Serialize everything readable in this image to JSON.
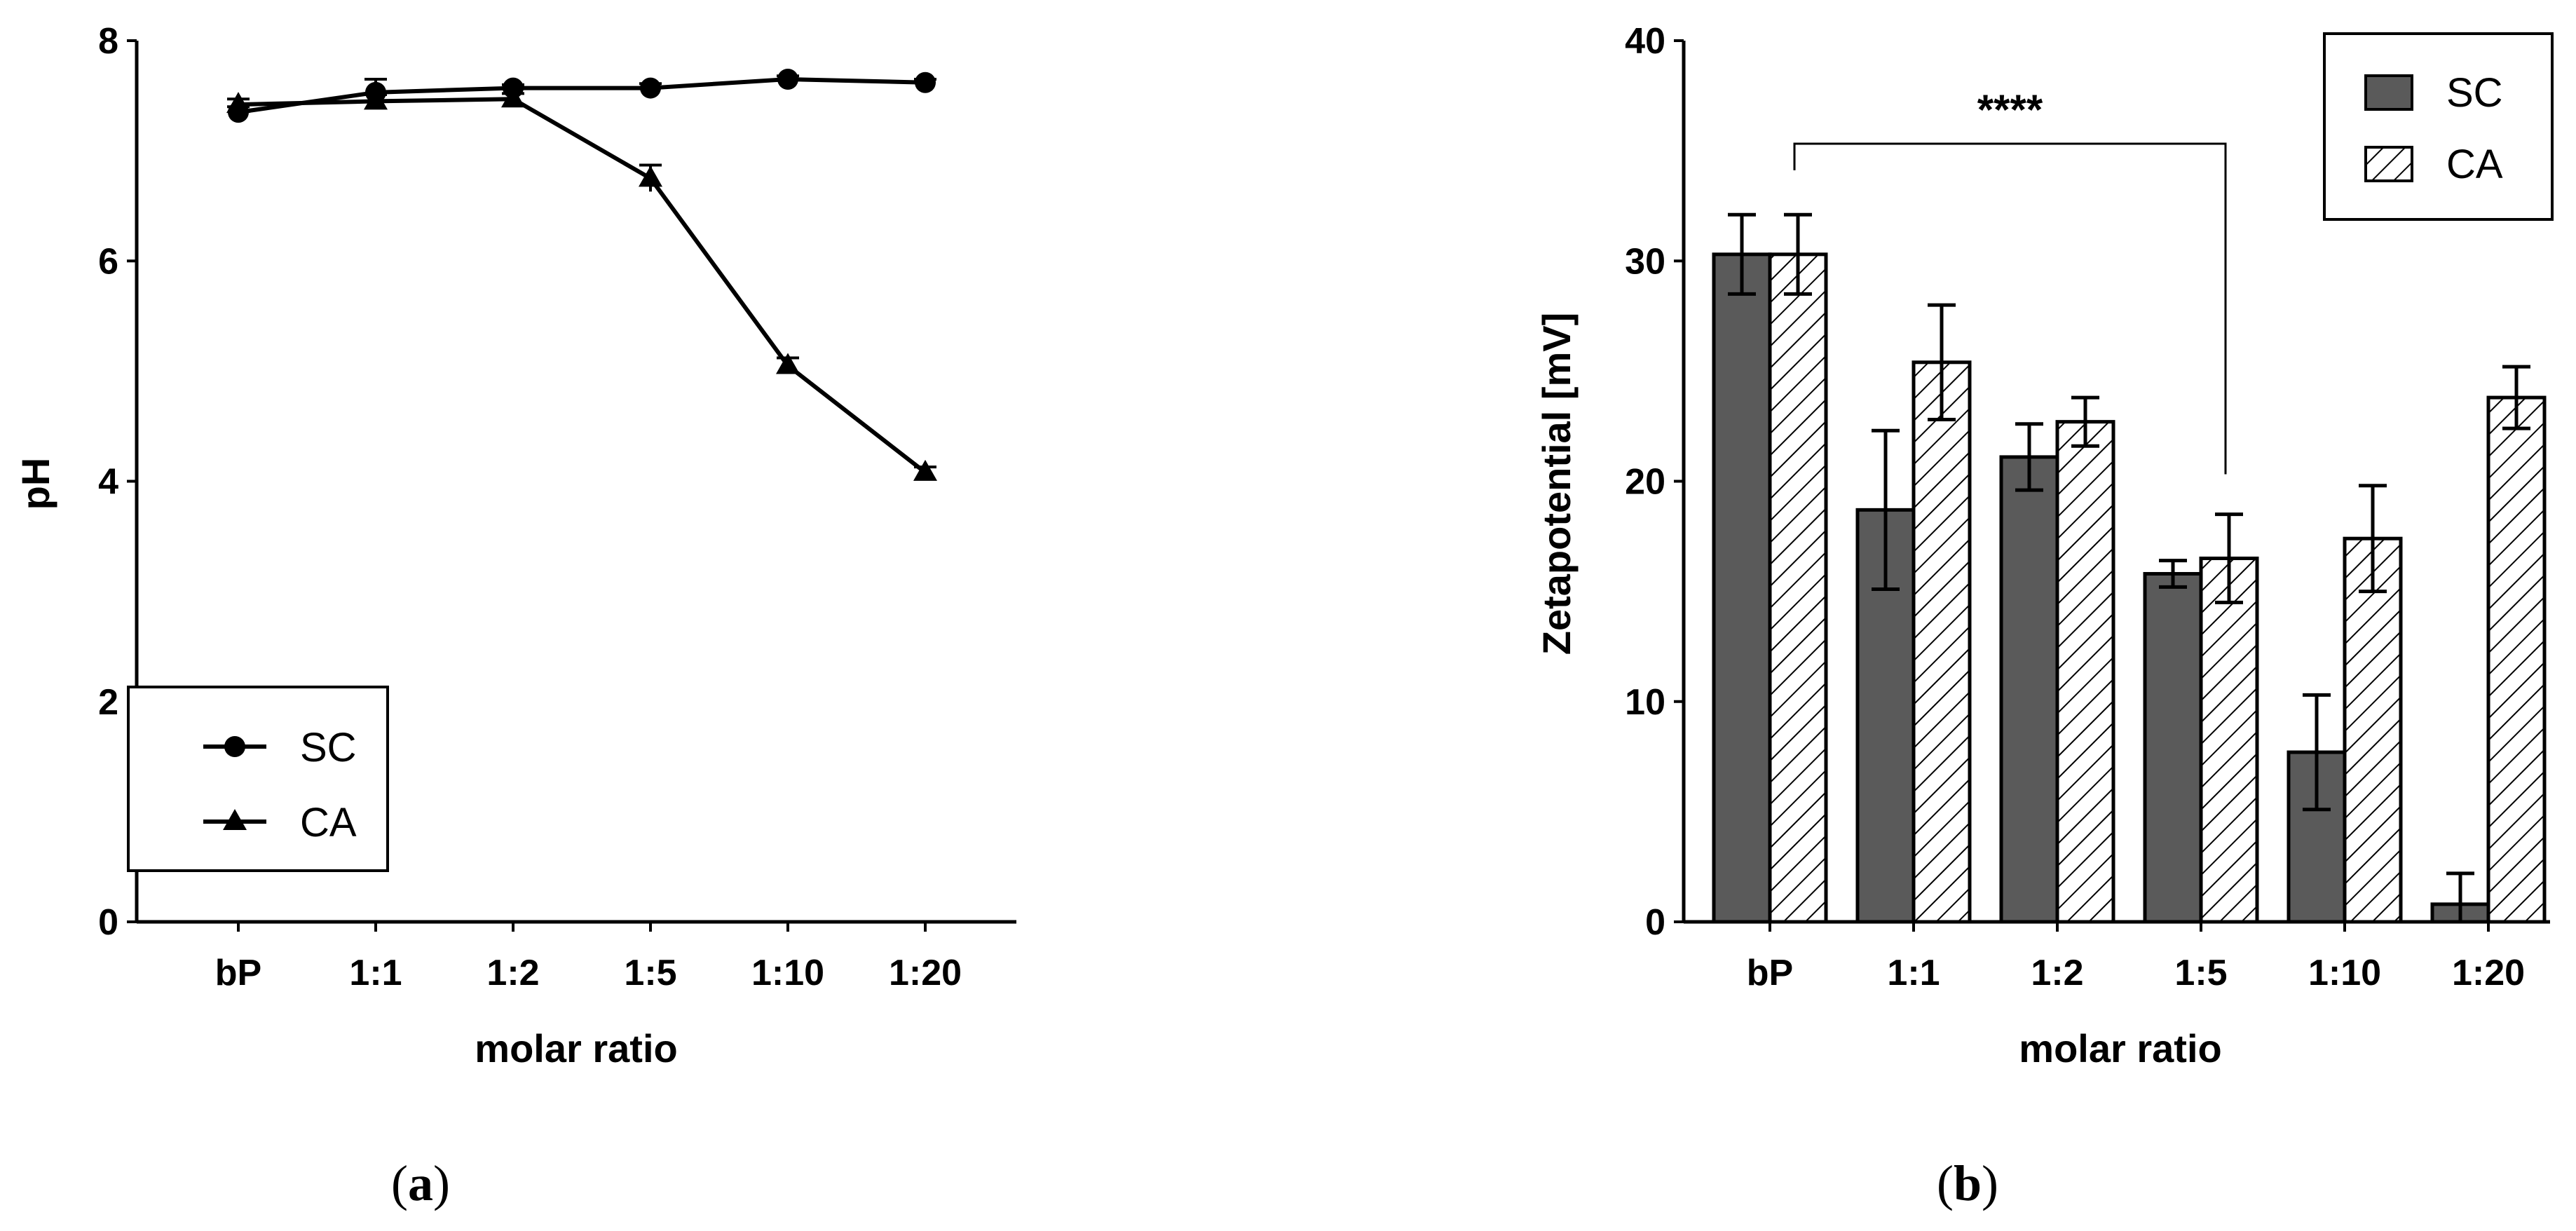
{
  "chart_data": [
    {
      "id": "a",
      "type": "line",
      "caption_letter": "a",
      "categories": [
        "bP",
        "1:1",
        "1:2",
        "1:5",
        "1:10",
        "1:20"
      ],
      "series": [
        {
          "name": "SC",
          "marker": "circle",
          "values": [
            7.35,
            7.53,
            7.57,
            7.57,
            7.65,
            7.62
          ],
          "errors": [
            0.05,
            0.12,
            0.03,
            0.04,
            0.03,
            0.03
          ]
        },
        {
          "name": "CA",
          "marker": "triangle",
          "values": [
            7.42,
            7.45,
            7.47,
            6.75,
            5.05,
            4.08
          ],
          "errors": [
            0.05,
            0.06,
            0.05,
            0.12,
            0.07,
            0.05
          ]
        }
      ],
      "xlabel": "molar ratio",
      "ylabel": "pH",
      "ylim": [
        0,
        8
      ],
      "yticks": [
        0,
        2,
        4,
        6,
        8
      ],
      "legend_position": "bottom-left"
    },
    {
      "id": "b",
      "type": "bar",
      "caption_letter": "b",
      "categories": [
        "bP",
        "1:1",
        "1:2",
        "1:5",
        "1:10",
        "1:20"
      ],
      "series": [
        {
          "name": "SC",
          "fill": "#5a5a5a",
          "values": [
            30.3,
            18.7,
            21.1,
            15.8,
            7.7,
            0.8
          ],
          "errors": [
            1.8,
            3.6,
            1.5,
            0.6,
            2.6,
            1.4
          ]
        },
        {
          "name": "CA",
          "fill": "hatch",
          "values": [
            30.3,
            25.4,
            22.7,
            16.5,
            17.4,
            23.8
          ],
          "errors": [
            1.8,
            2.6,
            1.1,
            2.0,
            2.4,
            1.4
          ]
        }
      ],
      "xlabel": "molar ratio",
      "ylabel": "Zetapotential [mV]",
      "ylim": [
        0,
        40
      ],
      "yticks": [
        0,
        10,
        20,
        30,
        40
      ],
      "legend_position": "top-right",
      "significance": {
        "label": "****",
        "from": "bP",
        "to": "1:5"
      }
    }
  ],
  "colors": {
    "line": "#000000",
    "sc_bar": "#5a5a5a",
    "background": "#ffffff"
  }
}
